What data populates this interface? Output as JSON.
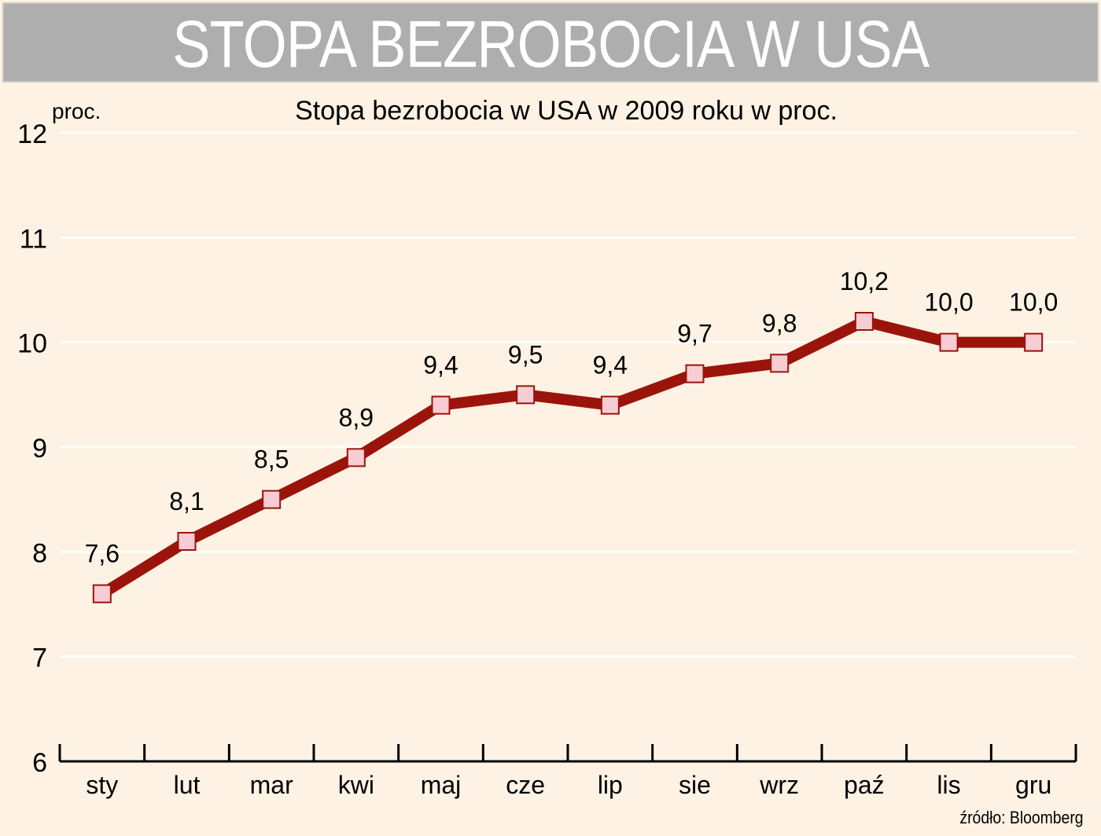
{
  "banner": {
    "title": "STOPA BEZROBOCIA W USA"
  },
  "source_label": "źródło: Bloomberg",
  "colors": {
    "background": "#fdf2e3",
    "banner": "#aeaeae",
    "line": "#9b140c",
    "marker_fill": "#f7cdd3",
    "grid": "#ffffff"
  },
  "chart_data": {
    "type": "line",
    "title": "Stopa bezrobocia w USA w 2009 roku w proc.",
    "ylabel": "proc.",
    "xlabel": "",
    "ylim": [
      6,
      12
    ],
    "yticks": [
      "6",
      "7",
      "8",
      "9",
      "10",
      "11",
      "12"
    ],
    "categories": [
      "sty",
      "lut",
      "mar",
      "kwi",
      "maj",
      "cze",
      "lip",
      "sie",
      "wrz",
      "paź",
      "lis",
      "gru"
    ],
    "series": [
      {
        "values": [
          7.6,
          8.1,
          8.5,
          8.9,
          9.4,
          9.5,
          9.4,
          9.7,
          9.8,
          10.2,
          10.0,
          10.0
        ],
        "labels": [
          "7,6",
          "8,1",
          "8,5",
          "8,9",
          "9,4",
          "9,5",
          "9,4",
          "9,7",
          "9,8",
          "10,2",
          "10,0",
          "10,0"
        ]
      }
    ],
    "grid": true,
    "legend": "none"
  }
}
